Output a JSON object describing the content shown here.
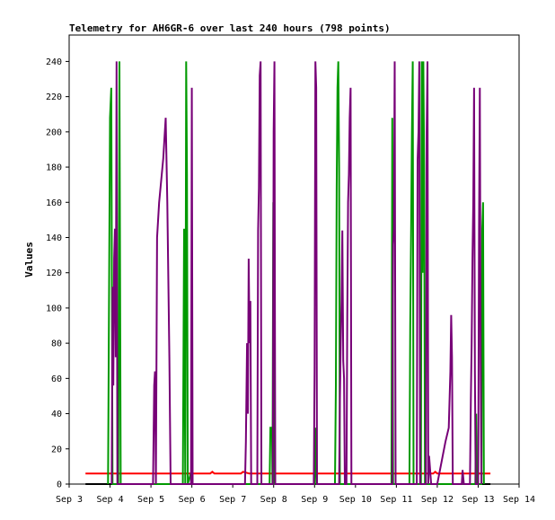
{
  "chart_data": {
    "type": "line",
    "title": "Telemetry for AH6GR-6 over last 240 hours (798 points)",
    "ylabel": "Values",
    "xlabel": "",
    "ylim": [
      0,
      255
    ],
    "xlim": [
      3,
      14
    ],
    "grid": false,
    "yticks": [
      0,
      20,
      40,
      60,
      80,
      100,
      120,
      140,
      160,
      180,
      200,
      220,
      240
    ],
    "xticks": [
      {
        "x": 3,
        "label": "Sep 3"
      },
      {
        "x": 4,
        "label": "Sep 4"
      },
      {
        "x": 5,
        "label": "Sep 5"
      },
      {
        "x": 6,
        "label": "Sep 6"
      },
      {
        "x": 7,
        "label": "Sep 7"
      },
      {
        "x": 8,
        "label": "Sep 8"
      },
      {
        "x": 9,
        "label": "Sep 9"
      },
      {
        "x": 10,
        "label": "Sep 10"
      },
      {
        "x": 11,
        "label": "Sep 11"
      },
      {
        "x": 12,
        "label": "Sep 12"
      },
      {
        "x": 13,
        "label": "Sep 13"
      },
      {
        "x": 14,
        "label": "Sep 14"
      }
    ],
    "series": [
      {
        "color": "#000000",
        "points": [
          [
            3.4,
            0
          ],
          [
            13.3,
            0
          ]
        ]
      },
      {
        "color": "#ff0000",
        "points": [
          [
            3.4,
            6
          ],
          [
            6.45,
            6
          ],
          [
            6.5,
            7
          ],
          [
            6.55,
            6
          ],
          [
            7.2,
            6
          ],
          [
            7.25,
            7
          ],
          [
            7.4,
            6
          ],
          [
            7.9,
            6
          ],
          [
            11.9,
            6
          ],
          [
            11.95,
            7
          ],
          [
            12,
            6
          ],
          [
            13.3,
            6
          ]
        ]
      },
      {
        "color": "#009900",
        "points": [
          [
            3.95,
            0
          ],
          [
            4.0,
            208
          ],
          [
            4.03,
            225
          ],
          [
            4.06,
            0
          ],
          [
            4.2,
            0
          ],
          [
            4.23,
            240
          ],
          [
            4.26,
            0
          ],
          [
            5.78,
            0
          ],
          [
            5.81,
            145
          ],
          [
            5.84,
            0
          ],
          [
            5.86,
            240
          ],
          [
            5.88,
            176
          ],
          [
            5.9,
            0
          ],
          [
            6.0,
            8
          ],
          [
            6.02,
            0
          ],
          [
            7.9,
            0
          ],
          [
            7.92,
            32
          ],
          [
            7.96,
            32
          ],
          [
            7.97,
            0
          ],
          [
            7.99,
            160
          ],
          [
            8.02,
            0
          ],
          [
            9.0,
            0
          ],
          [
            9.02,
            32
          ],
          [
            9.05,
            0
          ],
          [
            9.5,
            0
          ],
          [
            9.52,
            56
          ],
          [
            9.54,
            168
          ],
          [
            9.56,
            225
          ],
          [
            9.58,
            240
          ],
          [
            9.6,
            180
          ],
          [
            9.62,
            0
          ],
          [
            10.88,
            0
          ],
          [
            10.9,
            208
          ],
          [
            10.92,
            0
          ],
          [
            11.32,
            0
          ],
          [
            11.34,
            90
          ],
          [
            11.36,
            145
          ],
          [
            11.38,
            200
          ],
          [
            11.4,
            240
          ],
          [
            11.42,
            0
          ],
          [
            11.6,
            0
          ],
          [
            11.62,
            240
          ],
          [
            11.64,
            120
          ],
          [
            11.66,
            240
          ],
          [
            11.68,
            180
          ],
          [
            11.7,
            0
          ],
          [
            12.93,
            0
          ],
          [
            12.95,
            40
          ],
          [
            12.97,
            0
          ],
          [
            13.08,
            0
          ],
          [
            13.1,
            145
          ],
          [
            13.12,
            160
          ],
          [
            13.14,
            0
          ]
        ]
      },
      {
        "color": "#770077",
        "points": [
          [
            4.04,
            0
          ],
          [
            4.06,
            112
          ],
          [
            4.08,
            56
          ],
          [
            4.1,
            128
          ],
          [
            4.12,
            145
          ],
          [
            4.14,
            72
          ],
          [
            4.16,
            240
          ],
          [
            4.18,
            0
          ],
          [
            4.2,
            0
          ],
          [
            5.05,
            0
          ],
          [
            5.08,
            56
          ],
          [
            5.1,
            64
          ],
          [
            5.12,
            0
          ],
          [
            5.15,
            140
          ],
          [
            5.2,
            160
          ],
          [
            5.3,
            185
          ],
          [
            5.36,
            208
          ],
          [
            5.4,
            160
          ],
          [
            5.45,
            72
          ],
          [
            5.48,
            0
          ],
          [
            5.98,
            0
          ],
          [
            6.0,
            225
          ],
          [
            6.02,
            0
          ],
          [
            7.3,
            0
          ],
          [
            7.32,
            24
          ],
          [
            7.35,
            80
          ],
          [
            7.37,
            40
          ],
          [
            7.39,
            128
          ],
          [
            7.41,
            80
          ],
          [
            7.43,
            104
          ],
          [
            7.45,
            0
          ],
          [
            7.6,
            0
          ],
          [
            7.62,
            144
          ],
          [
            7.64,
            168
          ],
          [
            7.66,
            232
          ],
          [
            7.68,
            240
          ],
          [
            7.7,
            0
          ],
          [
            7.98,
            0
          ],
          [
            8.0,
            200
          ],
          [
            8.02,
            240
          ],
          [
            8.04,
            0
          ],
          [
            8.98,
            0
          ],
          [
            9.0,
            64
          ],
          [
            9.02,
            240
          ],
          [
            9.04,
            225
          ],
          [
            9.06,
            0
          ],
          [
            9.6,
            0
          ],
          [
            9.62,
            48
          ],
          [
            9.64,
            80
          ],
          [
            9.66,
            104
          ],
          [
            9.68,
            144
          ],
          [
            9.7,
            70
          ],
          [
            9.72,
            60
          ],
          [
            9.74,
            0
          ],
          [
            9.78,
            0
          ],
          [
            9.8,
            96
          ],
          [
            9.82,
            160
          ],
          [
            9.84,
            176
          ],
          [
            9.86,
            208
          ],
          [
            9.88,
            225
          ],
          [
            9.9,
            0
          ],
          [
            10.9,
            0
          ],
          [
            10.92,
            136
          ],
          [
            10.94,
            145
          ],
          [
            10.96,
            240
          ],
          [
            10.98,
            0
          ],
          [
            11.5,
            0
          ],
          [
            11.52,
            184
          ],
          [
            11.54,
            200
          ],
          [
            11.56,
            240
          ],
          [
            11.58,
            0
          ],
          [
            11.72,
            0
          ],
          [
            11.74,
            200
          ],
          [
            11.76,
            240
          ],
          [
            11.78,
            0
          ],
          [
            11.8,
            16
          ],
          [
            11.85,
            0
          ],
          [
            12.0,
            0
          ],
          [
            12.2,
            24
          ],
          [
            12.28,
            32
          ],
          [
            12.32,
            64
          ],
          [
            12.34,
            96
          ],
          [
            12.36,
            72
          ],
          [
            12.38,
            0
          ],
          [
            12.6,
            0
          ],
          [
            12.62,
            8
          ],
          [
            12.65,
            0
          ],
          [
            12.8,
            0
          ],
          [
            12.82,
            48
          ],
          [
            12.84,
            80
          ],
          [
            12.86,
            128
          ],
          [
            12.88,
            160
          ],
          [
            12.9,
            225
          ],
          [
            12.92,
            64
          ],
          [
            12.94,
            0
          ],
          [
            13.0,
            0
          ],
          [
            13.02,
            145
          ],
          [
            13.04,
            225
          ],
          [
            13.06,
            72
          ],
          [
            13.08,
            0
          ]
        ]
      }
    ]
  }
}
